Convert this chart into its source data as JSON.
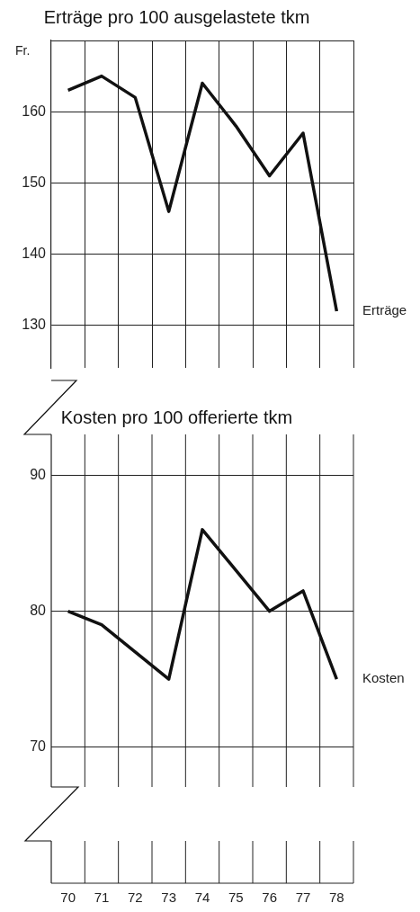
{
  "chart_data": [
    {
      "type": "line",
      "title": "Erträge pro 100 ausgelastete tkm",
      "ylabel": "Fr.",
      "categories": [
        "70",
        "71",
        "72",
        "73",
        "74",
        "75",
        "76",
        "77",
        "78"
      ],
      "series": [
        {
          "name": "Erträge",
          "color": "#111111",
          "values": [
            163,
            165,
            162,
            146,
            164,
            158,
            151,
            157,
            132
          ]
        }
      ],
      "ylim": [
        124,
        170
      ],
      "yticks": [
        130,
        140,
        150,
        160,
        {
          "value": 170,
          "label": null
        }
      ],
      "grid": true,
      "marker": "none",
      "tick_labels": "y"
    },
    {
      "type": "line",
      "title": "Kosten pro 100 offerierte tkm",
      "categories": [
        "70",
        "71",
        "72",
        "73",
        "74",
        "75",
        "76",
        "77",
        "78"
      ],
      "series": [
        {
          "name": "Kosten",
          "color": "#111111",
          "values": [
            80,
            79,
            77,
            75,
            86,
            83,
            80,
            81.5,
            75
          ]
        }
      ],
      "ylim": [
        60,
        93
      ],
      "yticks": [
        70,
        80,
        90
      ],
      "grid": true,
      "marker": "none"
    }
  ]
}
